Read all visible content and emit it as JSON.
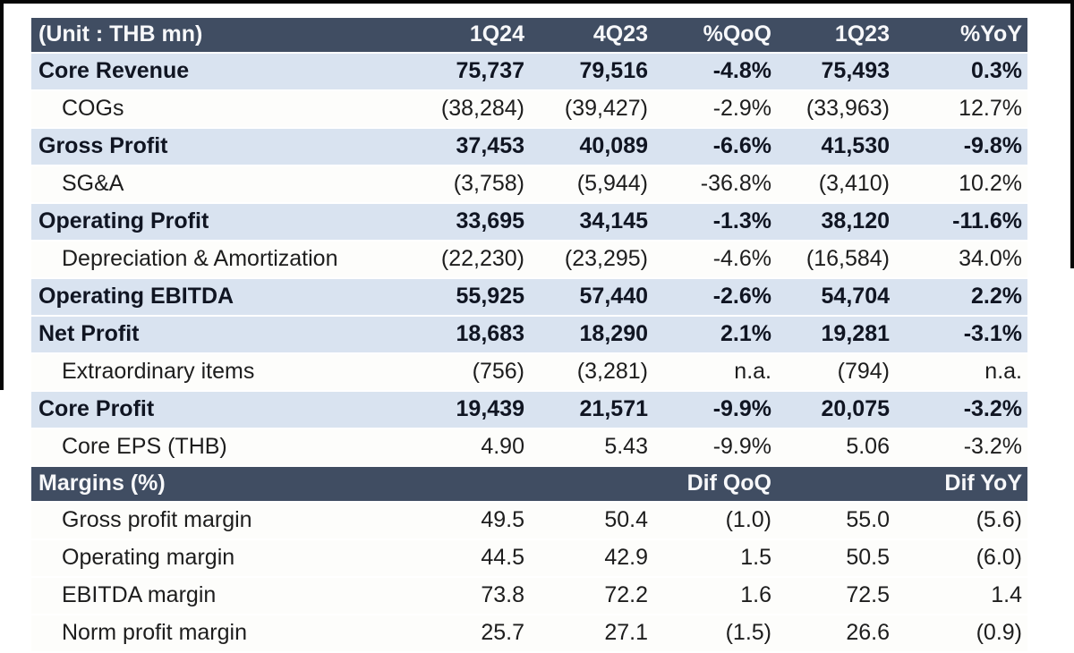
{
  "colors": {
    "header_bg": "#404d62",
    "highlight_row_bg": "#d9e3f0",
    "plain_row_bg": "#fdfdfb",
    "header_text": "#f7f8fa",
    "bold_text": "#101522",
    "body_text": "#1d1d1d",
    "edge_artifact": "#060606"
  },
  "table": {
    "unit_label": "(Unit : THB mn)",
    "columns": [
      "1Q24",
      "4Q23",
      "%QoQ",
      "1Q23",
      "%YoY"
    ],
    "rows": [
      {
        "label": "Core Revenue",
        "bold": true,
        "indent": false,
        "values": [
          "75,737",
          "79,516",
          "-4.8%",
          "75,493",
          "0.3%"
        ]
      },
      {
        "label": "COGs",
        "bold": false,
        "indent": true,
        "values": [
          "(38,284)",
          "(39,427)",
          "-2.9%",
          "(33,963)",
          "12.7%"
        ]
      },
      {
        "label": "Gross Profit",
        "bold": true,
        "indent": false,
        "values": [
          "37,453",
          "40,089",
          "-6.6%",
          "41,530",
          "-9.8%"
        ]
      },
      {
        "label": "SG&A",
        "bold": false,
        "indent": true,
        "values": [
          "(3,758)",
          "(5,944)",
          "-36.8%",
          "(3,410)",
          "10.2%"
        ]
      },
      {
        "label": "Operating Profit",
        "bold": true,
        "indent": false,
        "values": [
          "33,695",
          "34,145",
          "-1.3%",
          "38,120",
          "-11.6%"
        ]
      },
      {
        "label": "Depreciation & Amortization",
        "bold": false,
        "indent": true,
        "values": [
          "(22,230)",
          "(23,295)",
          "-4.6%",
          "(16,584)",
          "34.0%"
        ]
      },
      {
        "label": "Operating EBITDA",
        "bold": true,
        "indent": false,
        "values": [
          "55,925",
          "57,440",
          "-2.6%",
          "54,704",
          "2.2%"
        ]
      },
      {
        "label": "Net Profit",
        "bold": true,
        "indent": false,
        "values": [
          "18,683",
          "18,290",
          "2.1%",
          "19,281",
          "-3.1%"
        ]
      },
      {
        "label": "Extraordinary items",
        "bold": false,
        "indent": true,
        "values": [
          "(756)",
          "(3,281)",
          "n.a.",
          "(794)",
          "n.a."
        ]
      },
      {
        "label": "Core Profit",
        "bold": true,
        "indent": false,
        "values": [
          "19,439",
          "21,571",
          "-9.9%",
          "20,075",
          "-3.2%"
        ]
      },
      {
        "label": "Core EPS (THB)",
        "bold": false,
        "indent": true,
        "values": [
          "4.90",
          "5.43",
          "-9.9%",
          "5.06",
          "-3.2%"
        ]
      }
    ],
    "margins_header": {
      "label": "Margins (%)",
      "values": [
        "",
        "",
        "Dif QoQ",
        "",
        "Dif YoY"
      ]
    },
    "margin_rows": [
      {
        "label": "Gross profit margin",
        "bold": false,
        "indent": true,
        "values": [
          "49.5",
          "50.4",
          "(1.0)",
          "55.0",
          "(5.6)"
        ]
      },
      {
        "label": "Operating margin",
        "bold": false,
        "indent": true,
        "values": [
          "44.5",
          "42.9",
          "1.5",
          "50.5",
          "(6.0)"
        ]
      },
      {
        "label": "EBITDA margin",
        "bold": false,
        "indent": true,
        "values": [
          "73.8",
          "72.2",
          "1.6",
          "72.5",
          "1.4"
        ]
      },
      {
        "label": "Norm profit margin",
        "bold": false,
        "indent": true,
        "values": [
          "25.7",
          "27.1",
          "(1.5)",
          "26.6",
          "(0.9)"
        ]
      }
    ]
  }
}
